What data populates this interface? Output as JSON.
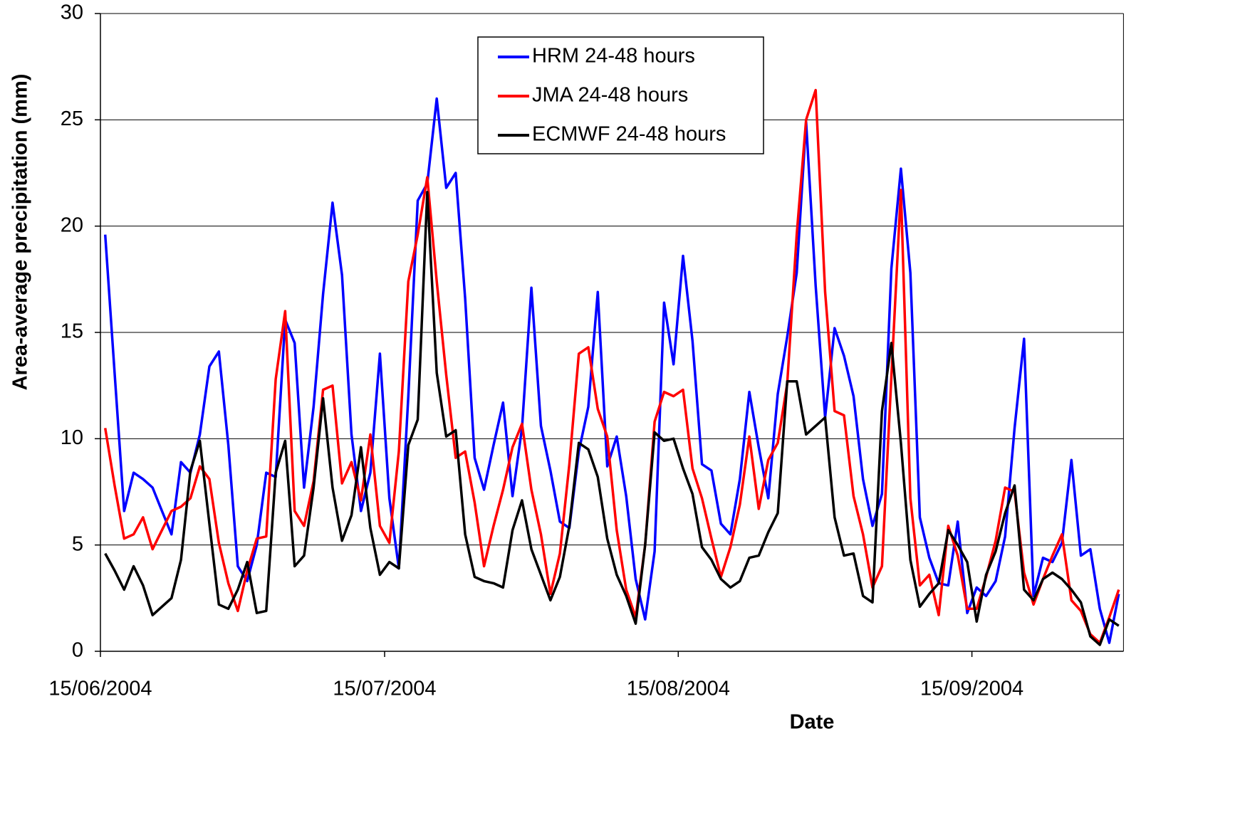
{
  "chart_data": {
    "type": "line",
    "x_label": "Date",
    "y_label": "Area-average precipitation (mm)",
    "categories": [
      "15/06/2004",
      null,
      null,
      null,
      null,
      null,
      null,
      null,
      null,
      null,
      null,
      null,
      null,
      null,
      null,
      null,
      null,
      null,
      null,
      null,
      null,
      null,
      null,
      null,
      null,
      null,
      null,
      null,
      null,
      null,
      "15/07/2004",
      null,
      null,
      null,
      null,
      null,
      null,
      null,
      null,
      null,
      null,
      null,
      null,
      null,
      null,
      null,
      null,
      null,
      null,
      null,
      null,
      null,
      null,
      null,
      null,
      null,
      null,
      null,
      null,
      null,
      null,
      "15/08/2004",
      null,
      null,
      null,
      null,
      null,
      null,
      null,
      null,
      null,
      null,
      null,
      null,
      null,
      null,
      null,
      null,
      null,
      null,
      null,
      null,
      null,
      null,
      null,
      null,
      null,
      null,
      null,
      null,
      null,
      null,
      "15/09/2004",
      null,
      null,
      null,
      null,
      null,
      null,
      null,
      null,
      null,
      null,
      null,
      null,
      null,
      null,
      null
    ],
    "series": [
      {
        "name": "HRM 24-48 hours",
        "color": "#0000ff",
        "values": [
          19.6,
          13.1,
          6.6,
          8.4,
          8.1,
          7.7,
          6.6,
          5.5,
          8.9,
          8.4,
          10.2,
          13.4,
          14.1,
          9.7,
          4.0,
          3.3,
          5.0,
          8.4,
          8.2,
          15.6,
          14.5,
          7.7,
          11.5,
          16.8,
          21.1,
          17.7,
          10.2,
          6.6,
          8.4,
          14.0,
          7.2,
          3.9,
          12.0,
          21.2,
          22.0,
          26.0,
          21.8,
          22.5,
          16.6,
          9.1,
          7.6,
          9.7,
          11.7,
          7.3,
          10.5,
          17.1,
          10.6,
          8.5,
          6.1,
          5.8,
          9.4,
          11.5,
          16.9,
          8.7,
          10.1,
          7.3,
          3.4,
          1.5,
          4.7,
          16.4,
          13.5,
          18.6,
          14.6,
          8.8,
          8.5,
          6.0,
          5.5,
          8.1,
          12.2,
          9.6,
          7.2,
          12.1,
          14.8,
          17.8,
          24.9,
          17.2,
          11.0,
          15.2,
          13.9,
          12.0,
          8.1,
          5.9,
          7.4,
          18.0,
          22.7,
          17.8,
          6.3,
          4.4,
          3.2,
          3.1,
          6.1,
          1.8,
          3.0,
          2.6,
          3.3,
          5.4,
          10.5,
          14.7,
          2.6,
          4.4,
          4.2,
          5.1,
          9.0,
          4.5,
          4.8,
          2.0,
          0.4,
          2.7
        ]
      },
      {
        "name": "JMA 24-48 hours",
        "color": "#ff0000",
        "values": [
          10.5,
          7.8,
          5.3,
          5.5,
          6.3,
          4.8,
          5.7,
          6.6,
          6.8,
          7.2,
          8.7,
          8.1,
          5.1,
          3.2,
          1.9,
          3.8,
          5.3,
          5.4,
          12.8,
          16.0,
          6.6,
          5.9,
          8.0,
          12.3,
          12.5,
          7.9,
          8.9,
          7.1,
          10.2,
          5.9,
          5.1,
          9.4,
          17.4,
          19.6,
          22.3,
          17.4,
          13.0,
          9.1,
          9.4,
          7.0,
          4.0,
          5.9,
          7.6,
          9.6,
          10.7,
          7.6,
          5.5,
          2.7,
          4.6,
          8.8,
          14.0,
          14.3,
          11.4,
          10.1,
          5.7,
          2.9,
          1.6,
          5.0,
          10.8,
          12.2,
          12.0,
          12.3,
          8.6,
          7.2,
          5.3,
          3.5,
          4.9,
          6.9,
          10.1,
          6.7,
          9.0,
          9.8,
          12.6,
          19.6,
          25.0,
          26.4,
          16.9,
          11.3,
          11.1,
          7.3,
          5.5,
          3.0,
          4.0,
          12.9,
          21.7,
          7.2,
          3.1,
          3.6,
          1.7,
          5.9,
          4.5,
          2.0,
          2.0,
          3.5,
          5.2,
          7.7,
          7.5,
          3.7,
          2.2,
          3.4,
          4.5,
          5.5,
          2.4,
          1.9,
          0.8,
          0.4,
          1.6,
          2.9
        ]
      },
      {
        "name": "ECMWF 24-48 hours",
        "color": "#000000",
        "values": [
          4.6,
          3.8,
          2.9,
          4.0,
          3.1,
          1.7,
          2.1,
          2.5,
          4.3,
          8.5,
          9.9,
          6.0,
          2.2,
          2.0,
          2.9,
          4.2,
          1.8,
          1.9,
          8.4,
          9.9,
          4.0,
          4.5,
          7.7,
          11.9,
          7.7,
          5.2,
          6.4,
          9.6,
          5.8,
          3.6,
          4.2,
          3.9,
          9.7,
          10.9,
          21.6,
          13.1,
          10.1,
          10.4,
          5.5,
          3.5,
          3.3,
          3.2,
          3.0,
          5.7,
          7.1,
          4.8,
          3.6,
          2.4,
          3.5,
          5.9,
          9.8,
          9.5,
          8.2,
          5.3,
          3.6,
          2.6,
          1.3,
          5.0,
          10.3,
          9.9,
          10.0,
          8.6,
          7.4,
          4.9,
          4.3,
          3.4,
          3.0,
          3.3,
          4.4,
          4.5,
          5.6,
          6.5,
          12.7,
          12.7,
          10.2,
          10.6,
          11.0,
          6.3,
          4.5,
          4.6,
          2.6,
          2.3,
          11.3,
          14.5,
          9.8,
          4.3,
          2.1,
          2.7,
          3.2,
          5.7,
          5.0,
          4.2,
          1.4,
          3.6,
          4.7,
          6.5,
          7.8,
          2.9,
          2.4,
          3.4,
          3.7,
          3.4,
          2.9,
          2.3,
          0.7,
          0.3,
          1.5,
          1.2
        ]
      }
    ],
    "ylim": [
      0,
      30
    ],
    "yticks": [
      0,
      5,
      10,
      15,
      20,
      25,
      30
    ],
    "grid": true,
    "legend": "top"
  }
}
